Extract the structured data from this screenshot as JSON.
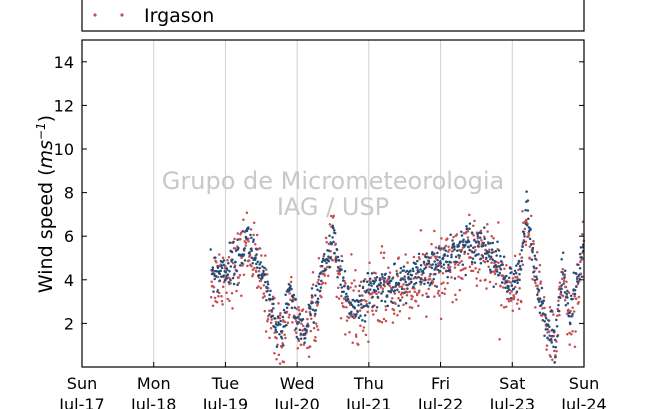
{
  "chart_data": {
    "type": "scatter",
    "title": "",
    "ylabel": "Wind speed (ms⁻¹)",
    "ylabel_parts": {
      "main": "Wind speed (",
      "unit": "ms",
      "exp": "−1",
      "close": ")"
    },
    "xlabel": "",
    "ylim": [
      0,
      15
    ],
    "yticks": [
      2,
      4,
      6,
      8,
      10,
      12,
      14
    ],
    "xlim_days": [
      0,
      7
    ],
    "xticks": [
      {
        "day": "Sun",
        "date": "Jul-17"
      },
      {
        "day": "Mon",
        "date": "Jul-18"
      },
      {
        "day": "Tue",
        "date": "Jul-19"
      },
      {
        "day": "Wed",
        "date": "Jul-20"
      },
      {
        "day": "Thu",
        "date": "Jul-21"
      },
      {
        "day": "Fri",
        "date": "Jul-22"
      },
      {
        "day": "Sat",
        "date": "Jul-23"
      },
      {
        "day": "Sun",
        "date": "Jul-24"
      }
    ],
    "grid": "vertical",
    "watermark": [
      "Grupo de Micrometeorologia",
      "IAG / USP"
    ],
    "legend": {
      "placement": "top",
      "entries": [
        "Irgason"
      ]
    },
    "series": [
      {
        "name": "Irgason",
        "color": "#c44e52",
        "profile": [
          [
            1.8,
            4.0
          ],
          [
            2.0,
            4.3
          ],
          [
            2.2,
            4.8
          ],
          [
            2.3,
            5.8
          ],
          [
            2.4,
            5.0
          ],
          [
            2.5,
            4.0
          ],
          [
            2.6,
            3.0
          ],
          [
            2.7,
            1.6
          ],
          [
            2.8,
            1.2
          ],
          [
            2.9,
            3.5
          ],
          [
            3.0,
            2.0
          ],
          [
            3.1,
            1.4
          ],
          [
            3.2,
            2.4
          ],
          [
            3.3,
            3.4
          ],
          [
            3.4,
            4.5
          ],
          [
            3.5,
            5.6
          ],
          [
            3.6,
            4.0
          ],
          [
            3.7,
            2.8
          ],
          [
            3.8,
            2.6
          ],
          [
            3.9,
            2.9
          ],
          [
            4.0,
            3.2
          ],
          [
            4.2,
            3.5
          ],
          [
            4.4,
            3.6
          ],
          [
            4.6,
            3.9
          ],
          [
            4.8,
            4.0
          ],
          [
            5.0,
            4.5
          ],
          [
            5.2,
            5.0
          ],
          [
            5.4,
            5.5
          ],
          [
            5.6,
            5.4
          ],
          [
            5.8,
            4.5
          ],
          [
            6.0,
            3.4
          ],
          [
            6.1,
            4.0
          ],
          [
            6.2,
            6.8
          ],
          [
            6.3,
            4.5
          ],
          [
            6.4,
            3.0
          ],
          [
            6.5,
            1.5
          ],
          [
            6.6,
            1.1
          ],
          [
            6.7,
            4.5
          ],
          [
            6.8,
            2.0
          ],
          [
            6.9,
            3.5
          ],
          [
            7.0,
            5.5
          ]
        ],
        "scatter_spread": 1.4
      },
      {
        "name": "",
        "color": "#1f4e79",
        "profile": [
          [
            1.8,
            4.2
          ],
          [
            2.0,
            4.5
          ],
          [
            2.2,
            5.0
          ],
          [
            2.3,
            6.0
          ],
          [
            2.4,
            5.2
          ],
          [
            2.5,
            4.2
          ],
          [
            2.6,
            3.2
          ],
          [
            2.7,
            1.8
          ],
          [
            2.8,
            1.4
          ],
          [
            2.9,
            3.8
          ],
          [
            3.0,
            2.0
          ],
          [
            3.1,
            1.6
          ],
          [
            3.2,
            2.6
          ],
          [
            3.3,
            3.6
          ],
          [
            3.4,
            4.8
          ],
          [
            3.5,
            5.8
          ],
          [
            3.6,
            4.2
          ],
          [
            3.7,
            3.0
          ],
          [
            3.8,
            2.8
          ],
          [
            3.9,
            3.1
          ],
          [
            4.0,
            3.4
          ],
          [
            4.2,
            3.7
          ],
          [
            4.4,
            3.8
          ],
          [
            4.6,
            4.1
          ],
          [
            4.8,
            4.3
          ],
          [
            5.0,
            4.8
          ],
          [
            5.2,
            5.3
          ],
          [
            5.4,
            5.8
          ],
          [
            5.6,
            5.6
          ],
          [
            5.8,
            4.7
          ],
          [
            6.0,
            3.6
          ],
          [
            6.1,
            4.2
          ],
          [
            6.2,
            7.2
          ],
          [
            6.3,
            4.7
          ],
          [
            6.4,
            3.2
          ],
          [
            6.5,
            1.7
          ],
          [
            6.6,
            1.2
          ],
          [
            6.7,
            4.8
          ],
          [
            6.8,
            2.2
          ],
          [
            6.9,
            3.8
          ],
          [
            7.0,
            5.8
          ]
        ],
        "scatter_spread": 0.8
      }
    ]
  }
}
